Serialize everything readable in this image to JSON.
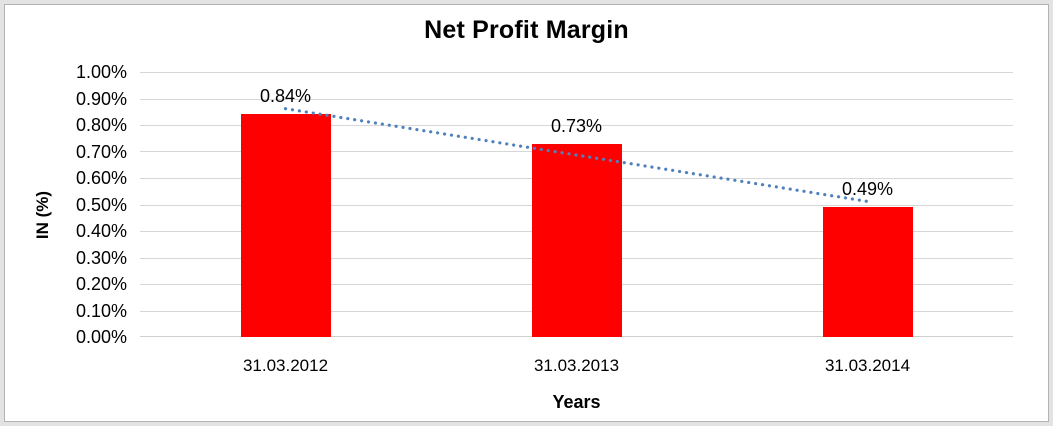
{
  "chart_data": {
    "type": "bar",
    "title": "Net Profit Margin",
    "xlabel": "Years",
    "ylabel": "IN (%)",
    "categories": [
      "31.03.2012",
      "31.03.2013",
      "31.03.2014"
    ],
    "values": [
      0.84,
      0.73,
      0.49
    ],
    "data_labels": [
      "0.84%",
      "0.73%",
      "0.49%"
    ],
    "ylim": [
      0,
      1.0
    ],
    "ytick_step": 0.1,
    "ytick_labels": [
      "0.00%",
      "0.10%",
      "0.20%",
      "0.30%",
      "0.40%",
      "0.50%",
      "0.60%",
      "0.70%",
      "0.80%",
      "0.90%",
      "1.00%"
    ],
    "grid": true,
    "legend": "none",
    "trendline": {
      "type": "linear",
      "style": "dotted"
    },
    "colors": {
      "bar": "#FF0000",
      "trendline": "#4F81BD",
      "gridline": "#D7D7D7",
      "axis_line": "#CFCFCF",
      "text": "#000000",
      "frame_band": "#E3E3E3",
      "frame_line": "#B3B3B3",
      "background": "#FFFFFF"
    }
  }
}
